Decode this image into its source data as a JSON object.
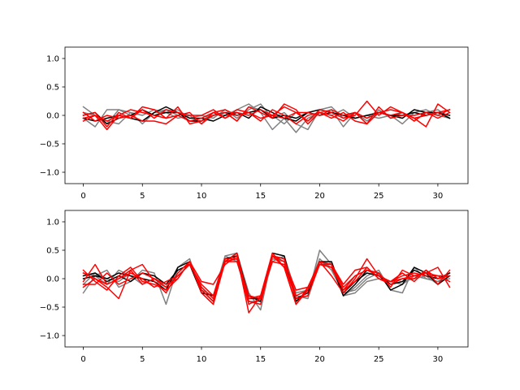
{
  "chart_data": [
    {
      "type": "line",
      "title": "",
      "xlabel": "",
      "ylabel": "",
      "xlim": [
        -1.55,
        32.55
      ],
      "ylim": [
        -1.2,
        1.2
      ],
      "xticks": [
        0,
        5,
        10,
        15,
        20,
        25,
        30
      ],
      "xtick_labels": [
        "0",
        "5",
        "10",
        "15",
        "20",
        "25",
        "30"
      ],
      "yticks": [
        -1.0,
        -0.5,
        0.0,
        0.5,
        1.0
      ],
      "ytick_labels": [
        "−1.0",
        "−0.5",
        "0.0",
        "0.5",
        "1.0"
      ],
      "grid": false,
      "x": [
        0,
        1,
        2,
        3,
        4,
        5,
        6,
        7,
        8,
        9,
        10,
        11,
        12,
        13,
        14,
        15,
        16,
        17,
        18,
        19,
        20,
        21,
        22,
        23,
        24,
        25,
        26,
        27,
        28,
        29,
        30,
        31
      ],
      "series": [
        {
          "color": "#808080",
          "values": [
            0.15,
            0.0,
            -0.15,
            0.1,
            0.0,
            -0.1,
            0.05,
            0.1,
            0.0,
            -0.1,
            -0.1,
            0.05,
            0.0,
            0.1,
            0.2,
            0.05,
            -0.25,
            -0.05,
            -0.3,
            -0.05,
            0.05,
            0.1,
            -0.2,
            0.05,
            -0.1,
            0.05,
            0.0,
            -0.15,
            0.05,
            0.1,
            0.0,
            -0.05
          ]
        },
        {
          "color": "#808080",
          "values": [
            -0.05,
            -0.2,
            0.1,
            0.1,
            0.05,
            -0.15,
            0.05,
            0.05,
            0.1,
            -0.05,
            0.0,
            -0.05,
            0.1,
            -0.05,
            0.1,
            0.2,
            -0.05,
            0.05,
            -0.15,
            -0.25,
            0.1,
            0.15,
            -0.05,
            0.05,
            -0.15,
            0.1,
            -0.05,
            0.05,
            -0.1,
            0.05,
            0.1,
            -0.05
          ]
        },
        {
          "color": "#808080",
          "values": [
            0.05,
            0.0,
            -0.1,
            -0.15,
            0.05,
            0.0,
            0.1,
            0.05,
            -0.05,
            0.0,
            -0.15,
            0.0,
            0.05,
            -0.1,
            0.15,
            0.1,
            0.0,
            -0.15,
            0.05,
            -0.1,
            0.05,
            0.0,
            0.1,
            -0.05,
            0.0,
            -0.05,
            0.0,
            0.05,
            -0.05,
            0.0,
            0.05,
            0.0
          ]
        },
        {
          "color": "#000000",
          "values": [
            -0.05,
            -0.1,
            -0.05,
            0.0,
            -0.05,
            -0.1,
            0.05,
            0.15,
            0.05,
            -0.05,
            -0.05,
            -0.1,
            0.0,
            0.05,
            -0.05,
            0.15,
            0.05,
            -0.05,
            -0.1,
            0.05,
            0.1,
            0.05,
            0.0,
            -0.05,
            0.0,
            0.05,
            0.0,
            -0.05,
            0.1,
            0.05,
            0.05,
            0.0
          ]
        },
        {
          "color": "#000000",
          "values": [
            0.0,
            0.05,
            -0.15,
            -0.05,
            0.0,
            0.1,
            0.0,
            0.05,
            0.05,
            -0.1,
            -0.1,
            0.0,
            0.05,
            0.0,
            0.05,
            0.1,
            -0.05,
            0.0,
            -0.05,
            0.05,
            0.0,
            0.05,
            0.0,
            0.05,
            -0.05,
            0.05,
            0.0,
            0.0,
            0.05,
            0.0,
            0.05,
            -0.05
          ]
        },
        {
          "color": "#ff0000",
          "values": [
            0.0,
            0.05,
            -0.2,
            0.05,
            -0.05,
            0.15,
            0.1,
            -0.05,
            0.0,
            -0.1,
            -0.05,
            0.05,
            -0.05,
            0.1,
            0.05,
            -0.05,
            0.0,
            0.15,
            0.05,
            -0.1,
            0.1,
            0.05,
            -0.05,
            0.0,
            0.25,
            0.0,
            0.15,
            0.05,
            -0.1,
            0.05,
            0.0,
            0.1
          ]
        },
        {
          "color": "#ff0000",
          "values": [
            -0.1,
            0.0,
            -0.25,
            0.0,
            0.1,
            0.05,
            0.0,
            -0.05,
            0.15,
            -0.15,
            -0.1,
            0.0,
            0.05,
            -0.1,
            0.15,
            0.05,
            -0.05,
            0.2,
            0.1,
            -0.15,
            0.05,
            -0.05,
            0.05,
            -0.1,
            -0.15,
            0.05,
            0.0,
            0.05,
            -0.05,
            -0.2,
            0.2,
            0.05
          ]
        },
        {
          "color": "#ff0000",
          "values": [
            0.05,
            -0.1,
            0.0,
            -0.05,
            0.0,
            -0.1,
            -0.1,
            -0.15,
            0.0,
            0.05,
            -0.15,
            0.05,
            0.1,
            0.0,
            0.05,
            -0.1,
            0.1,
            0.0,
            -0.15,
            0.0,
            0.05,
            0.0,
            -0.1,
            0.05,
            -0.15,
            0.15,
            -0.05,
            0.0,
            0.0,
            0.05,
            -0.05,
            0.05
          ]
        },
        {
          "color": "#ff0000",
          "values": [
            -0.05,
            0.0,
            -0.1,
            0.0,
            -0.05,
            0.1,
            -0.05,
            0.1,
            0.05,
            0.0,
            0.0,
            0.1,
            -0.05,
            0.05,
            0.0,
            0.1,
            0.0,
            -0.05,
            0.05,
            0.05,
            0.0,
            0.1,
            0.0,
            0.05,
            -0.05,
            0.05,
            0.1,
            0.05,
            -0.05,
            0.0,
            0.05,
            0.1
          ]
        }
      ]
    },
    {
      "type": "line",
      "title": "",
      "xlabel": "",
      "ylabel": "",
      "xlim": [
        -1.55,
        32.55
      ],
      "ylim": [
        -1.2,
        1.2
      ],
      "xticks": [
        0,
        5,
        10,
        15,
        20,
        25,
        30
      ],
      "xtick_labels": [
        "0",
        "5",
        "10",
        "15",
        "20",
        "25",
        "30"
      ],
      "yticks": [
        -1.0,
        -0.5,
        0.0,
        0.5,
        1.0
      ],
      "ytick_labels": [
        "−1.0",
        "−0.5",
        "0.0",
        "0.5",
        "1.0"
      ],
      "grid": false,
      "x": [
        0,
        1,
        2,
        3,
        4,
        5,
        6,
        7,
        8,
        9,
        10,
        11,
        12,
        13,
        14,
        15,
        16,
        17,
        18,
        19,
        20,
        21,
        22,
        23,
        24,
        25,
        26,
        27,
        28,
        29,
        30,
        31
      ],
      "series": [
        {
          "color": "#808080",
          "values": [
            -0.25,
            0.05,
            0.15,
            -0.15,
            -0.05,
            0.15,
            0.1,
            -0.45,
            0.2,
            0.35,
            -0.25,
            -0.45,
            0.4,
            0.45,
            -0.25,
            -0.55,
            0.4,
            0.35,
            -0.35,
            -0.3,
            0.5,
            0.25,
            -0.3,
            -0.15,
            0.05,
            0.15,
            -0.2,
            -0.25,
            0.2,
            0.0,
            -0.05,
            0.1
          ]
        },
        {
          "color": "#808080",
          "values": [
            0.1,
            0.05,
            -0.1,
            0.15,
            0.05,
            -0.1,
            0.0,
            -0.15,
            0.1,
            0.3,
            -0.2,
            -0.3,
            0.4,
            0.3,
            -0.4,
            -0.4,
            0.3,
            0.4,
            -0.25,
            -0.2,
            0.35,
            0.15,
            -0.25,
            -0.2,
            0.0,
            0.1,
            -0.1,
            -0.05,
            0.0,
            0.05,
            -0.1,
            0.05
          ]
        },
        {
          "color": "#808080",
          "values": [
            -0.1,
            0.1,
            0.0,
            -0.05,
            0.1,
            0.0,
            -0.05,
            -0.15,
            0.15,
            0.25,
            -0.15,
            -0.35,
            0.35,
            0.4,
            -0.3,
            -0.4,
            0.35,
            0.3,
            -0.3,
            -0.35,
            0.3,
            0.2,
            -0.3,
            -0.25,
            -0.05,
            0.0,
            -0.05,
            -0.1,
            0.05,
            0.0,
            -0.05,
            0.0
          ]
        },
        {
          "color": "#000000",
          "values": [
            0.0,
            0.05,
            0.0,
            0.1,
            0.05,
            0.0,
            -0.05,
            -0.2,
            0.2,
            0.3,
            -0.2,
            -0.4,
            0.35,
            0.4,
            -0.3,
            -0.4,
            0.45,
            0.4,
            -0.4,
            -0.2,
            0.3,
            0.25,
            -0.3,
            -0.1,
            0.15,
            0.1,
            -0.2,
            -0.1,
            0.2,
            0.1,
            -0.1,
            0.05
          ]
        },
        {
          "color": "#000000",
          "values": [
            0.05,
            0.1,
            -0.05,
            0.05,
            -0.05,
            0.1,
            0.05,
            -0.1,
            0.15,
            0.25,
            -0.25,
            -0.3,
            0.3,
            0.45,
            -0.35,
            -0.35,
            0.4,
            0.35,
            -0.35,
            -0.25,
            0.3,
            0.3,
            -0.25,
            -0.05,
            0.1,
            0.05,
            -0.1,
            -0.05,
            0.15,
            0.05,
            0.0,
            0.1
          ]
        },
        {
          "color": "#ff0000",
          "values": [
            0.15,
            -0.05,
            -0.2,
            0.05,
            0.2,
            -0.05,
            -0.1,
            -0.2,
            0.0,
            0.3,
            -0.05,
            -0.1,
            0.25,
            0.4,
            -0.6,
            -0.3,
            0.45,
            0.2,
            -0.45,
            -0.2,
            0.25,
            0.2,
            -0.2,
            0.05,
            0.15,
            0.1,
            -0.15,
            0.15,
            0.05,
            0.1,
            0.2,
            -0.15
          ]
        },
        {
          "color": "#ff0000",
          "values": [
            -0.15,
            0.0,
            -0.15,
            -0.35,
            0.15,
            0.25,
            -0.05,
            -0.25,
            0.1,
            0.3,
            -0.2,
            -0.4,
            0.3,
            0.45,
            -0.4,
            -0.45,
            0.4,
            0.3,
            -0.2,
            -0.15,
            0.25,
            0.25,
            -0.1,
            0.15,
            0.2,
            0.0,
            -0.05,
            0.1,
            -0.05,
            0.15,
            -0.1,
            0.15
          ]
        },
        {
          "color": "#ff0000",
          "values": [
            -0.05,
            0.25,
            -0.1,
            0.0,
            0.15,
            -0.1,
            0.0,
            -0.1,
            0.0,
            0.3,
            -0.25,
            -0.45,
            0.3,
            0.35,
            -0.45,
            -0.35,
            0.4,
            0.2,
            -0.45,
            -0.15,
            0.3,
            0.05,
            -0.25,
            0.0,
            0.35,
            0.05,
            -0.05,
            0.0,
            0.0,
            0.15,
            0.0,
            0.05
          ]
        },
        {
          "color": "#ff0000",
          "values": [
            0.1,
            0.0,
            -0.1,
            0.0,
            0.1,
            0.0,
            -0.15,
            -0.05,
            0.05,
            0.25,
            -0.1,
            -0.3,
            0.35,
            0.35,
            -0.3,
            -0.35,
            0.4,
            0.35,
            -0.3,
            -0.2,
            0.3,
            0.25,
            -0.15,
            0.05,
            0.15,
            0.05,
            -0.05,
            0.05,
            0.1,
            0.05,
            0.05,
            -0.05
          ]
        },
        {
          "color": "#ff0000",
          "values": [
            -0.1,
            -0.1,
            0.1,
            -0.1,
            0.0,
            0.1,
            0.0,
            -0.15,
            0.05,
            0.25,
            -0.15,
            -0.35,
            0.3,
            0.3,
            -0.35,
            -0.3,
            0.3,
            0.25,
            -0.35,
            -0.3,
            0.25,
            0.2,
            -0.2,
            -0.05,
            0.2,
            0.0,
            -0.1,
            0.0,
            0.05,
            0.1,
            0.05,
            0.05
          ]
        }
      ]
    }
  ]
}
